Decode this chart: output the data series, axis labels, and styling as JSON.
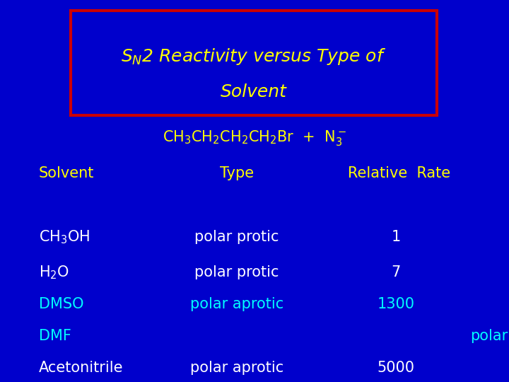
{
  "bg_color": "#0000cc",
  "title_box_edgecolor": "#cc0000",
  "title_text_color": "#ffff00",
  "cyan_color": "#00ffff",
  "white_color": "#ffffff",
  "yellow_color": "#ffff00",
  "header_solvent": "Solvent",
  "header_type": "Type",
  "header_relative": "Relative  Rate",
  "rows": [
    {
      "solvent_tex": "CH$_3$OH",
      "type": "polar protic",
      "rate": "1",
      "solvent_color": "#ffffff",
      "type_color": "#ffffff",
      "rate_color": "#ffffff"
    },
    {
      "solvent_tex": "H$_2$O",
      "type": "polar protic",
      "rate": "7",
      "solvent_color": "#ffffff",
      "type_color": "#ffffff",
      "rate_color": "#ffffff"
    },
    {
      "solvent_tex": "DMSO",
      "type": "polar aprotic",
      "rate": "1300",
      "solvent_color": "#00ffff",
      "type_color": "#00ffff",
      "rate_color": "#00ffff"
    },
    {
      "solvent_tex": "DMF",
      "type": "",
      "rate": "",
      "solvent_color": "#00ffff",
      "type_color": "#00ffff",
      "rate_color": "#00ffff"
    },
    {
      "solvent_tex": "Acetonitrile",
      "type": "polar aprotic",
      "rate": "5000",
      "solvent_color": "#ffffff",
      "type_color": "#ffffff",
      "rate_color": "#ffffff"
    }
  ],
  "dmf_polar_text": "polar",
  "dmf_polar_color": "#00ffff",
  "title_fontsize": 18,
  "body_fontsize": 15,
  "header_fontsize": 15
}
